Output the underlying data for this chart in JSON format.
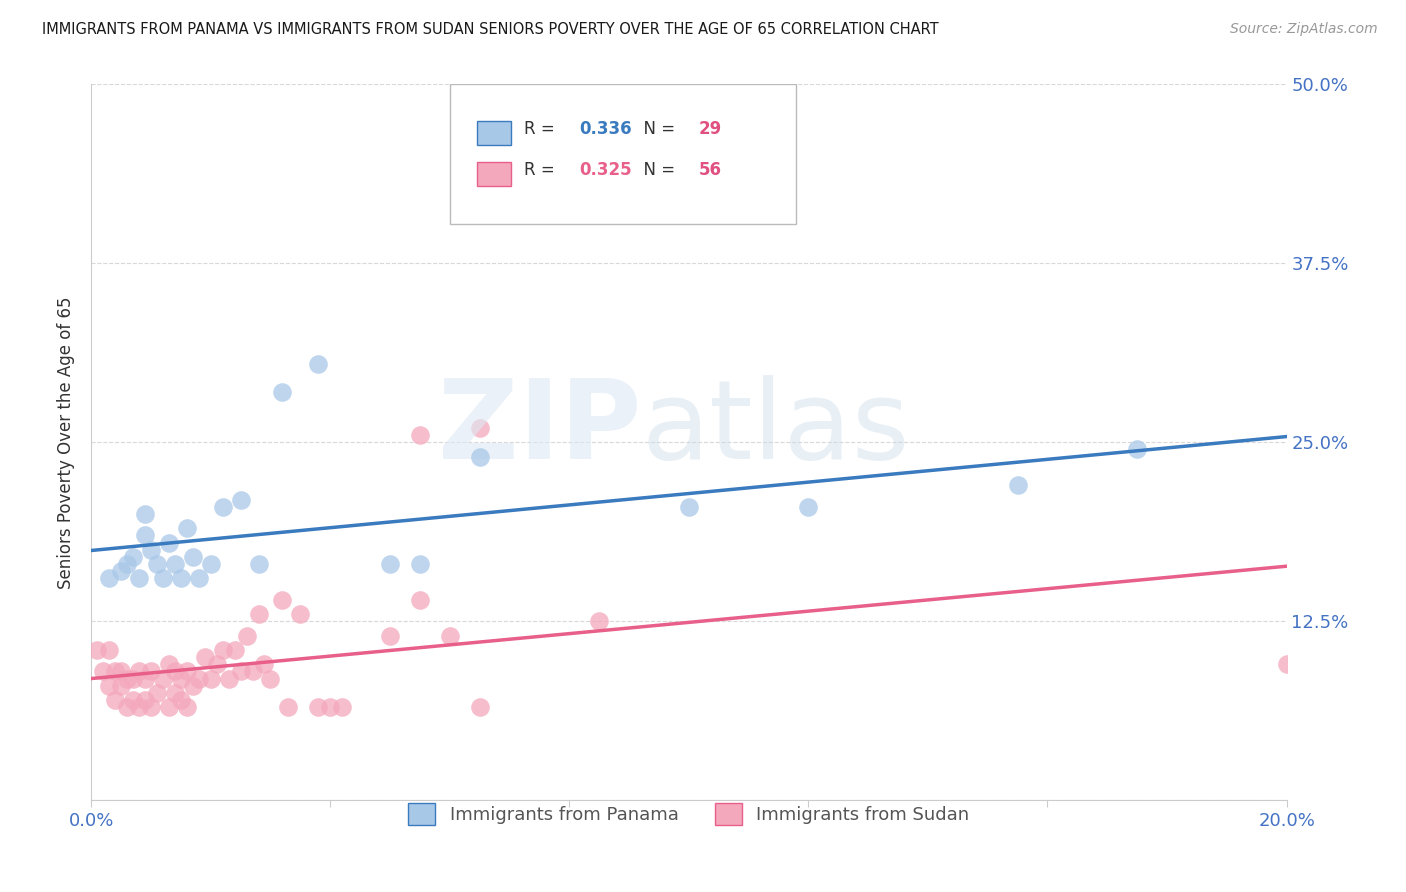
{
  "title": "IMMIGRANTS FROM PANAMA VS IMMIGRANTS FROM SUDAN SENIORS POVERTY OVER THE AGE OF 65 CORRELATION CHART",
  "source": "Source: ZipAtlas.com",
  "ylabel": "Seniors Poverty Over the Age of 65",
  "xlim": [
    0.0,
    0.2
  ],
  "ylim": [
    0.0,
    0.5
  ],
  "xticks": [
    0.0,
    0.04,
    0.08,
    0.12,
    0.16,
    0.2
  ],
  "xticklabels": [
    "0.0%",
    "",
    "",
    "",
    "",
    "20.0%"
  ],
  "yticks": [
    0.0,
    0.125,
    0.25,
    0.375,
    0.5
  ],
  "yticklabels": [
    "",
    "12.5%",
    "25.0%",
    "37.5%",
    "50.0%"
  ],
  "background_color": "#ffffff",
  "grid_color": "#d8d8d8",
  "panama_color": "#a8c8e8",
  "sudan_color": "#f4a8bc",
  "panama_line_color": "#3a7abf",
  "sudan_line_color": "#e8608a",
  "panama_R": 0.336,
  "panama_N": 29,
  "sudan_R": 0.325,
  "sudan_N": 56,
  "panama_scatter_x": [
    0.003,
    0.005,
    0.006,
    0.007,
    0.008,
    0.009,
    0.009,
    0.01,
    0.011,
    0.012,
    0.013,
    0.014,
    0.015,
    0.016,
    0.017,
    0.018,
    0.02,
    0.022,
    0.025,
    0.028,
    0.032,
    0.038,
    0.05,
    0.055,
    0.065,
    0.1,
    0.12,
    0.155,
    0.175
  ],
  "panama_scatter_y": [
    0.155,
    0.16,
    0.165,
    0.17,
    0.155,
    0.185,
    0.2,
    0.175,
    0.165,
    0.155,
    0.18,
    0.165,
    0.155,
    0.19,
    0.17,
    0.155,
    0.165,
    0.205,
    0.21,
    0.165,
    0.285,
    0.305,
    0.165,
    0.165,
    0.24,
    0.205,
    0.205,
    0.22,
    0.245
  ],
  "sudan_scatter_x": [
    0.001,
    0.002,
    0.003,
    0.003,
    0.004,
    0.004,
    0.005,
    0.005,
    0.006,
    0.006,
    0.007,
    0.007,
    0.008,
    0.008,
    0.009,
    0.009,
    0.01,
    0.01,
    0.011,
    0.012,
    0.013,
    0.013,
    0.014,
    0.014,
    0.015,
    0.015,
    0.016,
    0.016,
    0.017,
    0.018,
    0.019,
    0.02,
    0.021,
    0.022,
    0.023,
    0.024,
    0.025,
    0.026,
    0.027,
    0.028,
    0.029,
    0.03,
    0.032,
    0.033,
    0.035,
    0.038,
    0.04,
    0.042,
    0.05,
    0.055,
    0.06,
    0.065,
    0.055,
    0.065,
    0.085,
    0.2
  ],
  "sudan_scatter_y": [
    0.105,
    0.09,
    0.08,
    0.105,
    0.07,
    0.09,
    0.08,
    0.09,
    0.065,
    0.085,
    0.07,
    0.085,
    0.065,
    0.09,
    0.07,
    0.085,
    0.065,
    0.09,
    0.075,
    0.085,
    0.065,
    0.095,
    0.075,
    0.09,
    0.07,
    0.085,
    0.065,
    0.09,
    0.08,
    0.085,
    0.1,
    0.085,
    0.095,
    0.105,
    0.085,
    0.105,
    0.09,
    0.115,
    0.09,
    0.13,
    0.095,
    0.085,
    0.14,
    0.065,
    0.13,
    0.065,
    0.065,
    0.065,
    0.115,
    0.14,
    0.115,
    0.065,
    0.255,
    0.26,
    0.125,
    0.095
  ],
  "legend_R_color": "#3a7abf",
  "legend_N_color": "#e05080",
  "tick_color": "#4472c4"
}
